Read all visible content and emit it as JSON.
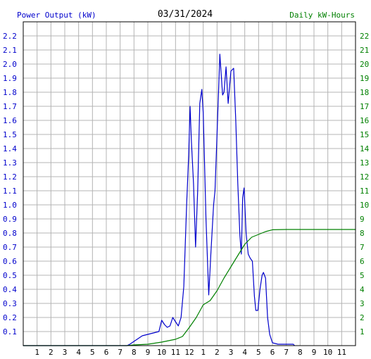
{
  "chart_data": {
    "type": "line",
    "title": "03/31/2024",
    "ylabel": "Power Output (kW)",
    "y2label": "Daily kW-Hours",
    "x_tick_labels": [
      "1",
      "2",
      "3",
      "4",
      "5",
      "6",
      "7",
      "8",
      "9",
      "10",
      "11",
      "12",
      "1",
      "2",
      "3",
      "4",
      "5",
      "6",
      "7",
      "8",
      "9",
      "10",
      "11"
    ],
    "ylim": [
      0,
      2.3
    ],
    "y_ticks": [
      "0.1",
      "0.2",
      "0.3",
      "0.4",
      "0.5",
      "0.6",
      "0.7",
      "0.8",
      "0.9",
      "1.0",
      "1.1",
      "1.2",
      "1.3",
      "1.4",
      "1.5",
      "1.6",
      "1.7",
      "1.8",
      "1.9",
      "2.0",
      "2.1",
      "2.2"
    ],
    "y2lim": [
      0,
      23
    ],
    "y2_ticks": [
      "1",
      "2",
      "3",
      "4",
      "5",
      "6",
      "7",
      "8",
      "9",
      "10",
      "11",
      "12",
      "13",
      "14",
      "15",
      "16",
      "17",
      "18",
      "19",
      "20",
      "21",
      "22"
    ],
    "grid": true,
    "series": [
      {
        "name": "Power Output (kW)",
        "color": "#0000cc",
        "axis": "left",
        "points": [
          [
            0,
            0
          ],
          [
            7.5,
            0
          ],
          [
            7.7,
            0.01
          ],
          [
            8.0,
            0.03
          ],
          [
            8.3,
            0.05
          ],
          [
            8.6,
            0.07
          ],
          [
            9.0,
            0.08
          ],
          [
            9.4,
            0.09
          ],
          [
            9.8,
            0.1
          ],
          [
            10.0,
            0.18
          ],
          [
            10.2,
            0.15
          ],
          [
            10.4,
            0.13
          ],
          [
            10.6,
            0.14
          ],
          [
            10.8,
            0.2
          ],
          [
            11.0,
            0.17
          ],
          [
            11.2,
            0.14
          ],
          [
            11.4,
            0.2
          ],
          [
            11.6,
            0.42
          ],
          [
            11.8,
            1.0
          ],
          [
            11.95,
            1.35
          ],
          [
            12.05,
            1.7
          ],
          [
            12.15,
            1.45
          ],
          [
            12.3,
            1.15
          ],
          [
            12.45,
            0.7
          ],
          [
            12.6,
            1.1
          ],
          [
            12.75,
            1.72
          ],
          [
            12.9,
            1.82
          ],
          [
            13.0,
            1.65
          ],
          [
            13.2,
            0.9
          ],
          [
            13.4,
            0.36
          ],
          [
            13.55,
            0.65
          ],
          [
            13.75,
            1.0
          ],
          [
            13.85,
            1.1
          ],
          [
            14.0,
            1.5
          ],
          [
            14.2,
            2.07
          ],
          [
            14.4,
            1.78
          ],
          [
            14.5,
            1.8
          ],
          [
            14.65,
            1.98
          ],
          [
            14.8,
            1.72
          ],
          [
            15.0,
            1.95
          ],
          [
            15.2,
            1.97
          ],
          [
            15.35,
            1.6
          ],
          [
            15.5,
            1.15
          ],
          [
            15.65,
            0.78
          ],
          [
            15.75,
            0.65
          ],
          [
            15.85,
            1.05
          ],
          [
            15.95,
            1.12
          ],
          [
            16.1,
            0.8
          ],
          [
            16.25,
            0.65
          ],
          [
            16.4,
            0.62
          ],
          [
            16.55,
            0.6
          ],
          [
            16.7,
            0.35
          ],
          [
            16.8,
            0.25
          ],
          [
            16.95,
            0.25
          ],
          [
            17.1,
            0.4
          ],
          [
            17.25,
            0.5
          ],
          [
            17.35,
            0.52
          ],
          [
            17.5,
            0.48
          ],
          [
            17.65,
            0.2
          ],
          [
            17.8,
            0.08
          ],
          [
            18.0,
            0.02
          ],
          [
            18.4,
            0.01
          ],
          [
            19.5,
            0.01
          ],
          [
            19.6,
            0
          ]
        ]
      },
      {
        "name": "Daily kW-Hours",
        "color": "#008000",
        "axis": "right",
        "points": [
          [
            0,
            0
          ],
          [
            7.5,
            0
          ],
          [
            8.0,
            0.05
          ],
          [
            9.0,
            0.1
          ],
          [
            10.0,
            0.25
          ],
          [
            11.0,
            0.45
          ],
          [
            11.5,
            0.65
          ],
          [
            12.0,
            1.3
          ],
          [
            12.5,
            2.0
          ],
          [
            13.0,
            2.9
          ],
          [
            13.5,
            3.2
          ],
          [
            14.0,
            3.9
          ],
          [
            14.5,
            4.8
          ],
          [
            15.0,
            5.6
          ],
          [
            15.5,
            6.4
          ],
          [
            16.0,
            7.2
          ],
          [
            16.5,
            7.7
          ],
          [
            17.0,
            7.9
          ],
          [
            17.5,
            8.1
          ],
          [
            18.0,
            8.23
          ],
          [
            19.0,
            8.25
          ],
          [
            24,
            8.25
          ]
        ]
      }
    ]
  }
}
